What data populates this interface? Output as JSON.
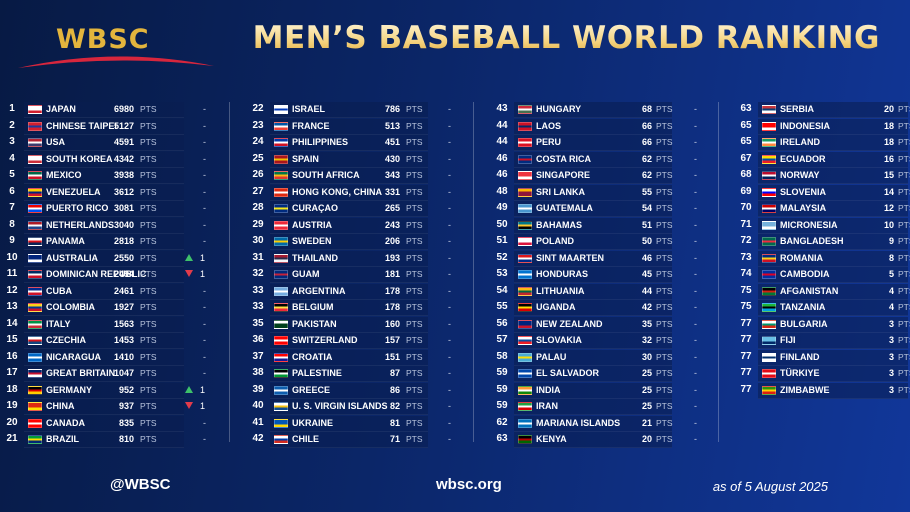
{
  "header": {
    "logo": "WBSC",
    "title": "MEN’S BASEBALL WORLD RANKING"
  },
  "pts_label": "PTS",
  "dash": "-",
  "columns": [
    [
      {
        "rank": "1",
        "country": "JAPAN",
        "points": "6980",
        "change": "",
        "flag": [
          "#ffffff",
          "#ffffff",
          "#d21f2e"
        ]
      },
      {
        "rank": "2",
        "country": "CHINESE TAIPEI",
        "points": "5127",
        "change": "",
        "flag": [
          "#d21f2e",
          "#1a3a9c",
          "#d21f2e"
        ]
      },
      {
        "rank": "3",
        "country": "USA",
        "points": "4591",
        "change": "",
        "flag": [
          "#b22234",
          "#ffffff",
          "#3c3b6e"
        ]
      },
      {
        "rank": "4",
        "country": "SOUTH KOREA",
        "points": "4342",
        "change": "",
        "flag": [
          "#ffffff",
          "#ffffff",
          "#cd2e3a"
        ]
      },
      {
        "rank": "5",
        "country": "MEXICO",
        "points": "3938",
        "change": "",
        "flag": [
          "#006847",
          "#ffffff",
          "#ce1126"
        ]
      },
      {
        "rank": "6",
        "country": "VENEZUELA",
        "points": "3612",
        "change": "",
        "flag": [
          "#ffcc00",
          "#00247d",
          "#cf142b"
        ]
      },
      {
        "rank": "7",
        "country": "PUERTO RICO",
        "points": "3081",
        "change": "",
        "flag": [
          "#ed0000",
          "#ffffff",
          "#0050f0"
        ]
      },
      {
        "rank": "8",
        "country": "NETHERLANDS",
        "points": "3040",
        "change": "",
        "flag": [
          "#ae1c28",
          "#ffffff",
          "#21468b"
        ]
      },
      {
        "rank": "9",
        "country": "PANAMA",
        "points": "2818",
        "change": "",
        "flag": [
          "#ffffff",
          "#da121a",
          "#072357"
        ]
      },
      {
        "rank": "10",
        "country": "AUSTRALIA",
        "points": "2550",
        "change": "up",
        "num": "1",
        "flag": [
          "#00247d",
          "#00247d",
          "#ffffff"
        ]
      },
      {
        "rank": "11",
        "country": "DOMINICAN REPUBLIC",
        "points": "2494",
        "change": "down",
        "num": "1",
        "flag": [
          "#002d62",
          "#ffffff",
          "#ce1126"
        ]
      },
      {
        "rank": "12",
        "country": "CUBA",
        "points": "2461",
        "change": "",
        "flag": [
          "#002a8f",
          "#ffffff",
          "#cf142b"
        ]
      },
      {
        "rank": "13",
        "country": "COLOMBIA",
        "points": "1927",
        "change": "",
        "flag": [
          "#fcd116",
          "#003893",
          "#ce1126"
        ]
      },
      {
        "rank": "14",
        "country": "ITALY",
        "points": "1563",
        "change": "",
        "flag": [
          "#009246",
          "#ffffff",
          "#ce2b37"
        ]
      },
      {
        "rank": "15",
        "country": "CZECHIA",
        "points": "1453",
        "change": "",
        "flag": [
          "#ffffff",
          "#d7141a",
          "#11457e"
        ]
      },
      {
        "rank": "16",
        "country": "NICARAGUA",
        "points": "1410",
        "change": "",
        "flag": [
          "#0067c6",
          "#ffffff",
          "#0067c6"
        ]
      },
      {
        "rank": "17",
        "country": "GREAT BRITAIN",
        "points": "1047",
        "change": "",
        "flag": [
          "#012169",
          "#c8102e",
          "#ffffff"
        ]
      },
      {
        "rank": "18",
        "country": "GERMANY",
        "points": "952",
        "change": "up",
        "num": "1",
        "flag": [
          "#000000",
          "#dd0000",
          "#ffce00"
        ]
      },
      {
        "rank": "19",
        "country": "CHINA",
        "points": "937",
        "change": "down",
        "num": "1",
        "flag": [
          "#de2910",
          "#de2910",
          "#ffde00"
        ]
      },
      {
        "rank": "20",
        "country": "CANADA",
        "points": "835",
        "change": "",
        "flag": [
          "#ff0000",
          "#ffffff",
          "#ff0000"
        ]
      },
      {
        "rank": "21",
        "country": "BRAZIL",
        "points": "810",
        "change": "",
        "flag": [
          "#009c3b",
          "#ffdf00",
          "#002776"
        ]
      }
    ],
    [
      {
        "rank": "22",
        "country": "ISRAEL",
        "points": "786",
        "change": "",
        "flag": [
          "#ffffff",
          "#0038b8",
          "#ffffff"
        ]
      },
      {
        "rank": "23",
        "country": "FRANCE",
        "points": "513",
        "change": "",
        "flag": [
          "#0055a4",
          "#ffffff",
          "#ef4135"
        ]
      },
      {
        "rank": "24",
        "country": "PHILIPPINES",
        "points": "451",
        "change": "",
        "flag": [
          "#0038a8",
          "#ffffff",
          "#ce1126"
        ]
      },
      {
        "rank": "25",
        "country": "SPAIN",
        "points": "430",
        "change": "",
        "flag": [
          "#aa151b",
          "#f1bf00",
          "#aa151b"
        ]
      },
      {
        "rank": "26",
        "country": "SOUTH AFRICA",
        "points": "343",
        "change": "",
        "flag": [
          "#007749",
          "#ffb612",
          "#de3831"
        ]
      },
      {
        "rank": "27",
        "country": "HONG KONG, CHINA",
        "points": "331",
        "change": "",
        "flag": [
          "#de2910",
          "#ffffff",
          "#de2910"
        ]
      },
      {
        "rank": "28",
        "country": "CURAÇAO",
        "points": "265",
        "change": "",
        "flag": [
          "#002b7f",
          "#f9e814",
          "#002b7f"
        ]
      },
      {
        "rank": "29",
        "country": "AUSTRIA",
        "points": "243",
        "change": "",
        "flag": [
          "#ed2939",
          "#ffffff",
          "#ed2939"
        ]
      },
      {
        "rank": "30",
        "country": "SWEDEN",
        "points": "206",
        "change": "",
        "flag": [
          "#006aa7",
          "#fecc00",
          "#006aa7"
        ]
      },
      {
        "rank": "31",
        "country": "THAILAND",
        "points": "193",
        "change": "",
        "flag": [
          "#a51931",
          "#2d2a4a",
          "#f4f5f8"
        ]
      },
      {
        "rank": "32",
        "country": "GUAM",
        "points": "181",
        "change": "",
        "flag": [
          "#00297b",
          "#c62139",
          "#00297b"
        ]
      },
      {
        "rank": "33",
        "country": "ARGENTINA",
        "points": "178",
        "change": "",
        "flag": [
          "#74acdf",
          "#ffffff",
          "#74acdf"
        ]
      },
      {
        "rank": "33",
        "country": "BELGIUM",
        "points": "178",
        "change": "",
        "flag": [
          "#000000",
          "#fae042",
          "#ed2939"
        ]
      },
      {
        "rank": "35",
        "country": "PAKISTAN",
        "points": "160",
        "change": "",
        "flag": [
          "#ffffff",
          "#01411c",
          "#01411c"
        ]
      },
      {
        "rank": "36",
        "country": "SWITZERLAND",
        "points": "157",
        "change": "",
        "flag": [
          "#ff0000",
          "#ffffff",
          "#ff0000"
        ]
      },
      {
        "rank": "37",
        "country": "CROATIA",
        "points": "151",
        "change": "",
        "flag": [
          "#ff0000",
          "#ffffff",
          "#171796"
        ]
      },
      {
        "rank": "38",
        "country": "PALESTINE",
        "points": "87",
        "change": "",
        "flag": [
          "#000000",
          "#ffffff",
          "#009736"
        ]
      },
      {
        "rank": "39",
        "country": "GREECE",
        "points": "86",
        "change": "",
        "flag": [
          "#0d5eaf",
          "#ffffff",
          "#0d5eaf"
        ]
      },
      {
        "rank": "40",
        "country": "U. S. VIRGIN ISLANDS",
        "points": "82",
        "change": "",
        "flag": [
          "#ffffff",
          "#f4c10f",
          "#0f4d92"
        ]
      },
      {
        "rank": "41",
        "country": "UKRAINE",
        "points": "81",
        "change": "",
        "flag": [
          "#0057b7",
          "#0057b7",
          "#ffd700"
        ]
      },
      {
        "rank": "42",
        "country": "CHILE",
        "points": "71",
        "change": "",
        "flag": [
          "#ffffff",
          "#0039a6",
          "#d52b1e"
        ]
      }
    ],
    [
      {
        "rank": "43",
        "country": "HUNGARY",
        "points": "68",
        "change": "",
        "flag": [
          "#ce2939",
          "#ffffff",
          "#477050"
        ]
      },
      {
        "rank": "44",
        "country": "LAOS",
        "points": "66",
        "change": "",
        "flag": [
          "#ce1126",
          "#002868",
          "#ce1126"
        ]
      },
      {
        "rank": "44",
        "country": "PERU",
        "points": "66",
        "change": "",
        "flag": [
          "#d91023",
          "#ffffff",
          "#d91023"
        ]
      },
      {
        "rank": "46",
        "country": "COSTA RICA",
        "points": "62",
        "change": "",
        "flag": [
          "#002b7f",
          "#ce1126",
          "#002b7f"
        ]
      },
      {
        "rank": "46",
        "country": "SINGAPORE",
        "points": "62",
        "change": "",
        "flag": [
          "#ef3340",
          "#ef3340",
          "#ffffff"
        ]
      },
      {
        "rank": "48",
        "country": "SRI LANKA",
        "points": "55",
        "change": "",
        "flag": [
          "#ffb700",
          "#8d153a",
          "#8d153a"
        ]
      },
      {
        "rank": "49",
        "country": "GUATEMALA",
        "points": "54",
        "change": "",
        "flag": [
          "#4997d0",
          "#ffffff",
          "#4997d0"
        ]
      },
      {
        "rank": "50",
        "country": "BAHAMAS",
        "points": "51",
        "change": "",
        "flag": [
          "#00778b",
          "#ffc72c",
          "#000000"
        ]
      },
      {
        "rank": "51",
        "country": "POLAND",
        "points": "50",
        "change": "",
        "flag": [
          "#ffffff",
          "#ffffff",
          "#dc143c"
        ]
      },
      {
        "rank": "52",
        "country": "SINT MAARTEN",
        "points": "46",
        "change": "",
        "flag": [
          "#dc171d",
          "#ffffff",
          "#012a87"
        ]
      },
      {
        "rank": "53",
        "country": "HONDURAS",
        "points": "45",
        "change": "",
        "flag": [
          "#0073cf",
          "#ffffff",
          "#0073cf"
        ]
      },
      {
        "rank": "54",
        "country": "LITHUANIA",
        "points": "44",
        "change": "",
        "flag": [
          "#fdb913",
          "#006a44",
          "#c1272d"
        ]
      },
      {
        "rank": "55",
        "country": "UGANDA",
        "points": "42",
        "change": "",
        "flag": [
          "#000000",
          "#fcdc04",
          "#d90000"
        ]
      },
      {
        "rank": "56",
        "country": "NEW ZEALAND",
        "points": "35",
        "change": "",
        "flag": [
          "#00247d",
          "#00247d",
          "#cc142b"
        ]
      },
      {
        "rank": "57",
        "country": "SLOVAKIA",
        "points": "32",
        "change": "",
        "flag": [
          "#ffffff",
          "#0b4ea2",
          "#ee1c25"
        ]
      },
      {
        "rank": "58",
        "country": "PALAU",
        "points": "30",
        "change": "",
        "flag": [
          "#4aadd6",
          "#ffde00",
          "#4aadd6"
        ]
      },
      {
        "rank": "59",
        "country": "EL SALVADOR",
        "points": "25",
        "change": "",
        "flag": [
          "#0047ab",
          "#ffffff",
          "#0047ab"
        ]
      },
      {
        "rank": "59",
        "country": "INDIA",
        "points": "25",
        "change": "",
        "flag": [
          "#ff9933",
          "#ffffff",
          "#138808"
        ]
      },
      {
        "rank": "59",
        "country": "IRAN",
        "points": "25",
        "change": "",
        "flag": [
          "#239f40",
          "#ffffff",
          "#da0000"
        ]
      },
      {
        "rank": "62",
        "country": "MARIANA ISLANDS",
        "points": "21",
        "change": "",
        "flag": [
          "#0071bc",
          "#ffffff",
          "#0071bc"
        ]
      },
      {
        "rank": "63",
        "country": "KENYA",
        "points": "20",
        "change": "",
        "flag": [
          "#000000",
          "#bb0000",
          "#006600"
        ]
      }
    ],
    [
      {
        "rank": "63",
        "country": "SERBIA",
        "points": "20",
        "change": "",
        "flag": [
          "#c6363c",
          "#0c4076",
          "#ffffff"
        ]
      },
      {
        "rank": "65",
        "country": "INDONESIA",
        "points": "18",
        "change": "",
        "flag": [
          "#ff0000",
          "#ff0000",
          "#ffffff"
        ]
      },
      {
        "rank": "65",
        "country": "IRELAND",
        "points": "18",
        "change": "",
        "flag": [
          "#169b62",
          "#ffffff",
          "#ff883e"
        ]
      },
      {
        "rank": "67",
        "country": "ECUADOR",
        "points": "16",
        "change": "",
        "flag": [
          "#ffdd00",
          "#034ea2",
          "#ed1c24"
        ]
      },
      {
        "rank": "68",
        "country": "NORWAY",
        "points": "15",
        "change": "",
        "flag": [
          "#ba0c2f",
          "#ffffff",
          "#00205b"
        ]
      },
      {
        "rank": "69",
        "country": "SLOVENIA",
        "points": "14",
        "change": "",
        "flag": [
          "#ffffff",
          "#0000ff",
          "#ff0000"
        ]
      },
      {
        "rank": "70",
        "country": "MALAYSIA",
        "points": "12",
        "change": "",
        "flag": [
          "#cc0001",
          "#ffffff",
          "#010066"
        ]
      },
      {
        "rank": "71",
        "country": "MICRONESIA",
        "points": "10",
        "change": "",
        "flag": [
          "#75b2dd",
          "#75b2dd",
          "#ffffff"
        ]
      },
      {
        "rank": "72",
        "country": "BANGLADESH",
        "points": "9",
        "change": "",
        "flag": [
          "#006a4e",
          "#f42a41",
          "#006a4e"
        ]
      },
      {
        "rank": "73",
        "country": "ROMANIA",
        "points": "8",
        "change": "",
        "flag": [
          "#002b7f",
          "#fcd116",
          "#ce1126"
        ]
      },
      {
        "rank": "74",
        "country": "CAMBODIA",
        "points": "5",
        "change": "",
        "flag": [
          "#032ea1",
          "#e00025",
          "#032ea1"
        ]
      },
      {
        "rank": "75",
        "country": "AFGANISTAN",
        "points": "4",
        "change": "",
        "flag": [
          "#000000",
          "#d32011",
          "#007a36"
        ]
      },
      {
        "rank": "75",
        "country": "TANZANIA",
        "points": "4",
        "change": "",
        "flag": [
          "#1eb53a",
          "#000000",
          "#00a3dd"
        ]
      },
      {
        "rank": "77",
        "country": "BULGARIA",
        "points": "3",
        "change": "",
        "flag": [
          "#ffffff",
          "#00966e",
          "#d62612"
        ]
      },
      {
        "rank": "77",
        "country": "FIJI",
        "points": "3",
        "change": "",
        "flag": [
          "#68bfe5",
          "#68bfe5",
          "#002868"
        ]
      },
      {
        "rank": "77",
        "country": "FINLAND",
        "points": "3",
        "change": "",
        "flag": [
          "#ffffff",
          "#002f6c",
          "#ffffff"
        ]
      },
      {
        "rank": "77",
        "country": "TÜRKIYE",
        "points": "3",
        "change": "",
        "flag": [
          "#e30a17",
          "#ffffff",
          "#e30a17"
        ]
      },
      {
        "rank": "77",
        "country": "ZIMBABWE",
        "points": "3",
        "change": "",
        "flag": [
          "#319208",
          "#ffd200",
          "#de2010"
        ]
      }
    ]
  ],
  "footer": {
    "social": "@WBSC",
    "site": "wbsc.org",
    "as_of": "as of 5 August 2025"
  },
  "colors": {
    "gold": "#e3b53d",
    "up": "#3ec16a",
    "down": "#e23b4b",
    "swoosh": "#d7263d"
  }
}
